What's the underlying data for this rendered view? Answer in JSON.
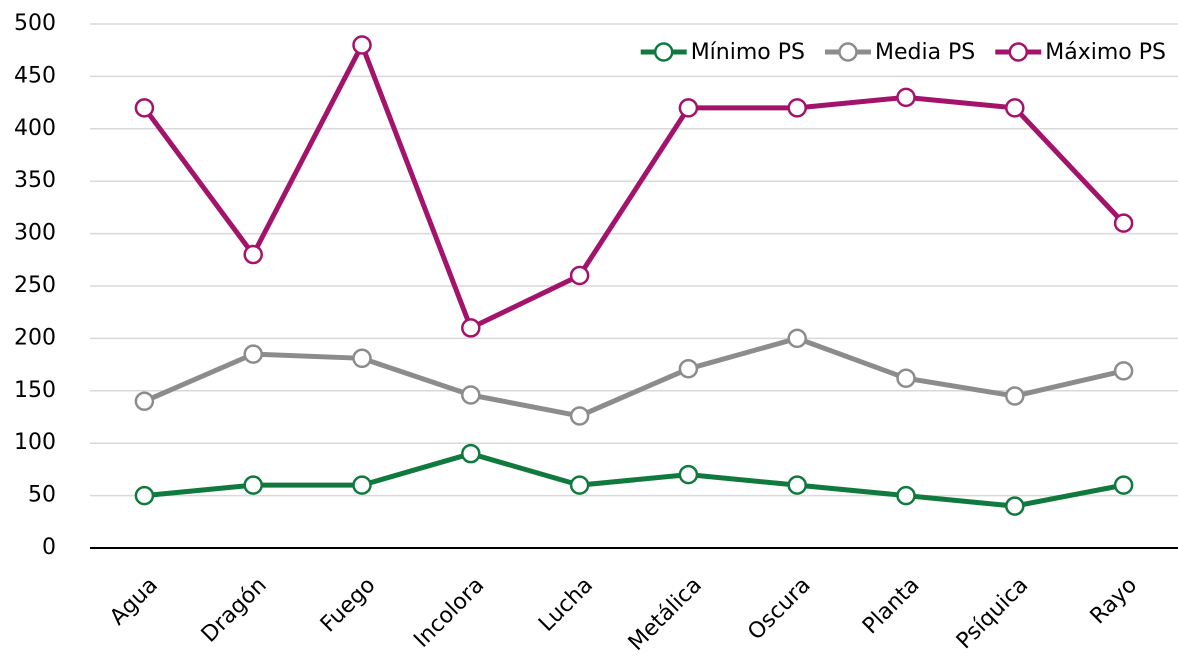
{
  "chart_data": {
    "type": "line",
    "categories": [
      "Agua",
      "Dragón",
      "Fuego",
      "Incolora",
      "Lucha",
      "Metálica",
      "Oscura",
      "Planta",
      "Psíquica",
      "Rayo"
    ],
    "series": [
      {
        "name": "Mínimo PS",
        "color": "#107a3e",
        "values": [
          50,
          60,
          60,
          90,
          60,
          70,
          60,
          50,
          40,
          60
        ]
      },
      {
        "name": "Media PS",
        "color": "#8c8c8c",
        "values": [
          140,
          185,
          181,
          146,
          126,
          171,
          200,
          162,
          145,
          169
        ]
      },
      {
        "name": "Máximo PS",
        "color": "#a3136c",
        "values": [
          420,
          280,
          480,
          210,
          260,
          420,
          420,
          430,
          420,
          310
        ]
      }
    ],
    "ylim": [
      0,
      500
    ],
    "yticks": [
      0,
      50,
      100,
      150,
      200,
      250,
      300,
      350,
      400,
      450,
      500
    ],
    "grid": true,
    "legend": "top-right"
  }
}
